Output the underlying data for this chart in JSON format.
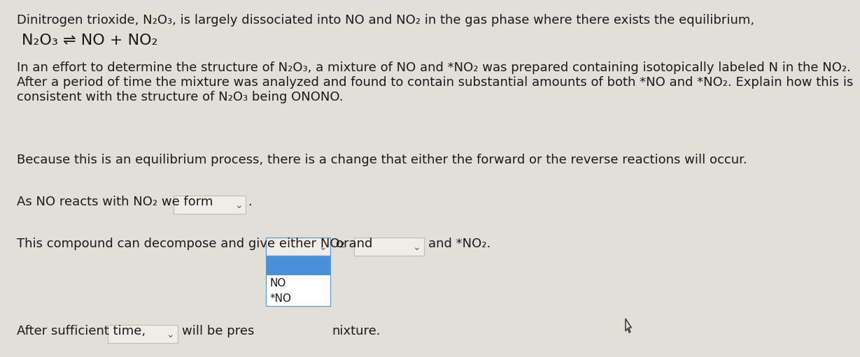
{
  "bg_color": "#e2dfd9",
  "title_text": "Dinitrogen trioxide, N₂O₃, is largely dissociated into NO and NO₂ in the gas phase where there exists the equilibrium,",
  "equilibrium_text": "N₂O₃ ⇌ NO + NO₂",
  "para_line1": "In an effort to determine the structure of N₂O₃, a mixture of NO and *NO₂ was prepared containing isotopically labeled N in the NO₂.",
  "para_line2": "After a period of time the mixture was analyzed and found to contain substantial amounts of both *NO and *NO₂. Explain how this is",
  "para_line3": "consistent with the structure of N₂O₃ being ONONO.",
  "answer_text": "Because this is an equilibrium process, there is a change that either the forward or the reverse reactions will occur.",
  "line1_text": "As NO reacts with NO₂ we form",
  "line2_text": "This compound can decompose and give either NO₂ and",
  "line2_or": "or",
  "line2_and": "and *NO₂.",
  "line3_text": "After sufficient time,",
  "line3_mid": "will be pres",
  "line3_end": "nixture.",
  "dropdown_color": "#f0ede8",
  "dropdown_border": "#bbbbbb",
  "blue_fill": "#4a90d9",
  "dropdown_items_NO": "NO",
  "dropdown_items_starNO": "*NO",
  "text_color": "#1a1a1a",
  "font_size": 13.0
}
